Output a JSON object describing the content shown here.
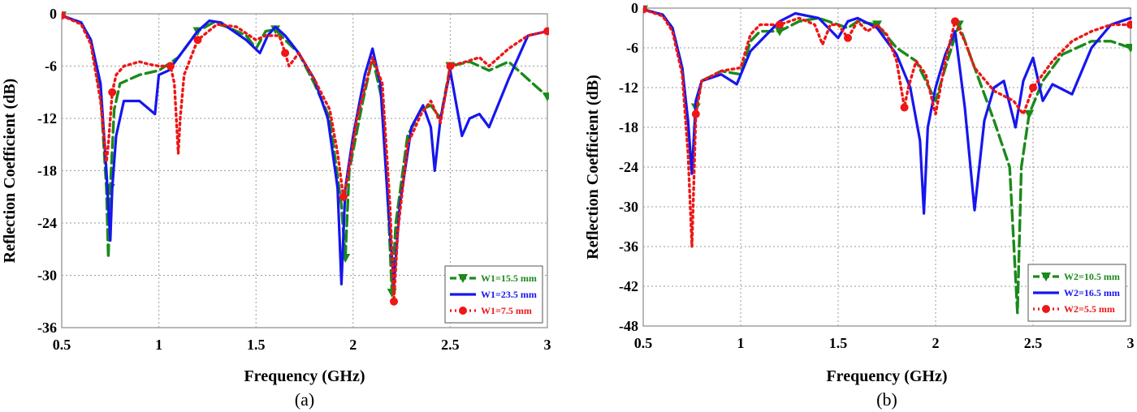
{
  "chart_data": [
    {
      "type": "line",
      "panel_label": "(a)",
      "xlabel": "Frequency (GHz)",
      "ylabel": "Reflection Coefficient (dB)",
      "xlim": [
        0.5,
        3
      ],
      "ylim": [
        -36,
        0
      ],
      "xticks": [
        0.5,
        1,
        1.5,
        2,
        2.5,
        3
      ],
      "xtick_labels": [
        "0.5",
        "1",
        "1.5",
        "2",
        "2.5",
        "3"
      ],
      "yticks": [
        0,
        -6,
        -12,
        -18,
        -24,
        -30,
        -36
      ],
      "ytick_labels": [
        "0",
        "-6",
        "-12",
        "-18",
        "-24",
        "-30",
        "-36"
      ],
      "grid": true,
      "legend_position": "bottom-right",
      "series": [
        {
          "name": "W1=15.5 mm",
          "color": "#1a8a1a",
          "style": "dashed",
          "marker": "triangle-down",
          "x": [
            0.5,
            0.6,
            0.65,
            0.7,
            0.73,
            0.74,
            0.75,
            0.77,
            0.8,
            0.9,
            1.0,
            1.1,
            1.2,
            1.28,
            1.35,
            1.45,
            1.5,
            1.55,
            1.6,
            1.65,
            1.72,
            1.8,
            1.88,
            1.94,
            1.96,
            1.98,
            2.05,
            2.1,
            2.15,
            2.18,
            2.2,
            2.22,
            2.28,
            2.35,
            2.4,
            2.45,
            2.5,
            2.6,
            2.7,
            2.8,
            2.9,
            3.0
          ],
          "y": [
            -0.2,
            -1.0,
            -3.0,
            -9.0,
            -20.0,
            -28.0,
            -20.0,
            -11.0,
            -8.0,
            -7.0,
            -6.5,
            -5.0,
            -2.0,
            -1.0,
            -1.5,
            -2.5,
            -4.0,
            -2.0,
            -1.8,
            -3.0,
            -4.5,
            -8.0,
            -12.0,
            -22.0,
            -28.0,
            -18.0,
            -10.0,
            -5.0,
            -10.0,
            -22.0,
            -32.0,
            -24.0,
            -14.0,
            -11.0,
            -10.5,
            -12.0,
            -6.0,
            -5.5,
            -6.5,
            -5.5,
            -7.5,
            -9.5
          ]
        },
        {
          "name": "W1=23.5 mm",
          "color": "#1616ee",
          "style": "solid",
          "marker": "none",
          "x": [
            0.5,
            0.6,
            0.65,
            0.7,
            0.73,
            0.75,
            0.76,
            0.78,
            0.82,
            0.9,
            0.98,
            1.0,
            1.05,
            1.1,
            1.2,
            1.26,
            1.32,
            1.45,
            1.52,
            1.56,
            1.6,
            1.65,
            1.72,
            1.8,
            1.87,
            1.92,
            1.94,
            1.96,
            2.0,
            2.06,
            2.1,
            2.14,
            2.18,
            2.21,
            2.24,
            2.3,
            2.36,
            2.4,
            2.42,
            2.45,
            2.5,
            2.56,
            2.6,
            2.65,
            2.7,
            2.8,
            2.9,
            3.0
          ],
          "y": [
            -0.2,
            -1.0,
            -3.0,
            -8.0,
            -18.0,
            -26.0,
            -20.0,
            -14.0,
            -10.0,
            -10.0,
            -11.5,
            -7.0,
            -6.5,
            -5.0,
            -2.0,
            -0.8,
            -1.0,
            -3.0,
            -4.5,
            -2.5,
            -1.5,
            -2.5,
            -4.5,
            -7.5,
            -12.0,
            -20.0,
            -31.0,
            -20.0,
            -14.0,
            -7.0,
            -4.0,
            -8.0,
            -22.0,
            -31.0,
            -22.0,
            -13.0,
            -10.5,
            -13.0,
            -18.0,
            -12.0,
            -6.5,
            -14.0,
            -12.0,
            -11.5,
            -13.0,
            -7.5,
            -2.5,
            -2.0
          ]
        },
        {
          "name": "W1=7.5 mm",
          "color": "#ee1616",
          "style": "dotted",
          "marker": "circle",
          "x": [
            0.5,
            0.6,
            0.65,
            0.7,
            0.73,
            0.74,
            0.76,
            0.78,
            0.82,
            0.9,
            0.95,
            1.0,
            1.06,
            1.08,
            1.09,
            1.1,
            1.11,
            1.13,
            1.2,
            1.3,
            1.4,
            1.5,
            1.55,
            1.62,
            1.65,
            1.67,
            1.72,
            1.8,
            1.88,
            1.92,
            1.95,
            1.97,
            2.02,
            2.1,
            2.15,
            2.19,
            2.21,
            2.23,
            2.28,
            2.35,
            2.4,
            2.45,
            2.5,
            2.58,
            2.65,
            2.7,
            2.8,
            2.9,
            3.0
          ],
          "y": [
            -0.2,
            -1.2,
            -3.5,
            -10.0,
            -17.0,
            -15.0,
            -9.0,
            -7.0,
            -6.0,
            -5.5,
            -5.8,
            -6.0,
            -6.0,
            -8.0,
            -12.0,
            -16.0,
            -12.0,
            -7.0,
            -3.0,
            -1.2,
            -1.5,
            -3.0,
            -2.5,
            -2.5,
            -4.5,
            -6.0,
            -4.5,
            -7.5,
            -11.0,
            -16.0,
            -21.0,
            -19.0,
            -12.0,
            -5.0,
            -8.0,
            -22.0,
            -33.0,
            -25.0,
            -15.0,
            -11.5,
            -10.0,
            -12.5,
            -6.0,
            -5.5,
            -5.0,
            -6.0,
            -4.0,
            -2.5,
            -2.0
          ]
        }
      ]
    },
    {
      "type": "line",
      "panel_label": "(b)",
      "xlabel": "Frequency (GHz)",
      "ylabel": "Reflection Coefficient (dB)",
      "xlim": [
        0.5,
        3
      ],
      "ylim": [
        -48,
        0
      ],
      "xticks": [
        0.5,
        1,
        1.5,
        2,
        2.5,
        3
      ],
      "xtick_labels": [
        "0.5",
        "1",
        "1.5",
        "2",
        "2.5",
        "3"
      ],
      "yticks": [
        0,
        -6,
        -12,
        -18,
        -24,
        -30,
        -36,
        -42,
        -48
      ],
      "ytick_labels": [
        "0",
        "-6",
        "-12",
        "-18",
        "-24",
        "-30",
        "-36",
        "-42",
        "-48"
      ],
      "grid": true,
      "legend_position": "bottom-right",
      "series": [
        {
          "name": "W2=10.5 mm",
          "color": "#1a8a1a",
          "style": "dashed",
          "marker": "triangle-down",
          "x": [
            0.5,
            0.6,
            0.65,
            0.7,
            0.73,
            0.75,
            0.77,
            0.8,
            0.9,
            1.0,
            1.05,
            1.1,
            1.2,
            1.3,
            1.4,
            1.5,
            1.55,
            1.6,
            1.7,
            1.8,
            1.9,
            1.95,
            2.0,
            2.06,
            2.12,
            2.2,
            2.3,
            2.38,
            2.42,
            2.44,
            2.48,
            2.55,
            2.65,
            2.8,
            2.9,
            3.0
          ],
          "y": [
            -0.2,
            -1.0,
            -3.0,
            -9.0,
            -18.0,
            -25.0,
            -15.0,
            -11.0,
            -9.5,
            -10.0,
            -5.0,
            -3.5,
            -3.5,
            -2.0,
            -1.5,
            -2.5,
            -3.0,
            -2.0,
            -2.5,
            -6.0,
            -8.0,
            -11.0,
            -14.0,
            -8.0,
            -2.5,
            -9.0,
            -17.0,
            -24.0,
            -46.0,
            -24.0,
            -16.0,
            -11.0,
            -7.0,
            -5.0,
            -5.0,
            -6.0
          ]
        },
        {
          "name": "W2=16.5 mm",
          "color": "#1616ee",
          "style": "solid",
          "marker": "none",
          "x": [
            0.5,
            0.6,
            0.65,
            0.7,
            0.73,
            0.75,
            0.77,
            0.8,
            0.9,
            0.98,
            1.05,
            1.2,
            1.28,
            1.4,
            1.5,
            1.55,
            1.6,
            1.7,
            1.8,
            1.87,
            1.92,
            1.94,
            1.96,
            2.0,
            2.05,
            2.1,
            2.15,
            2.2,
            2.25,
            2.3,
            2.35,
            2.41,
            2.45,
            2.5,
            2.55,
            2.6,
            2.7,
            2.8,
            2.9,
            3.0
          ],
          "y": [
            -0.2,
            -1.0,
            -3.0,
            -9.0,
            -17.0,
            -25.0,
            -14.0,
            -11.0,
            -10.0,
            -11.5,
            -6.5,
            -2.0,
            -0.8,
            -1.5,
            -4.5,
            -2.0,
            -1.5,
            -3.0,
            -7.0,
            -12.0,
            -20.0,
            -31.0,
            -18.0,
            -12.0,
            -7.0,
            -3.5,
            -15.0,
            -30.5,
            -17.0,
            -12.0,
            -11.0,
            -18.0,
            -11.0,
            -7.5,
            -14.0,
            -11.5,
            -13.0,
            -6.0,
            -2.5,
            -1.5
          ]
        },
        {
          "name": "W2=5.5 mm",
          "color": "#ee1616",
          "style": "dotted",
          "marker": "circle",
          "x": [
            0.5,
            0.6,
            0.65,
            0.7,
            0.73,
            0.75,
            0.77,
            0.8,
            0.9,
            1.0,
            1.05,
            1.1,
            1.2,
            1.3,
            1.38,
            1.42,
            1.46,
            1.5,
            1.55,
            1.6,
            1.65,
            1.7,
            1.75,
            1.8,
            1.84,
            1.86,
            1.9,
            1.95,
            2.0,
            2.05,
            2.1,
            2.15,
            2.2,
            2.3,
            2.4,
            2.45,
            2.5,
            2.6,
            2.7,
            2.8,
            2.9,
            3.0
          ],
          "y": [
            -0.2,
            -1.2,
            -3.5,
            -10.0,
            -22.0,
            -36.0,
            -16.0,
            -11.0,
            -9.5,
            -9.0,
            -4.0,
            -2.5,
            -2.5,
            -1.5,
            -2.5,
            -5.5,
            -2.5,
            -2.5,
            -4.5,
            -2.0,
            -3.5,
            -2.5,
            -4.0,
            -8.0,
            -15.0,
            -12.0,
            -8.0,
            -10.0,
            -16.0,
            -8.0,
            -2.0,
            -5.0,
            -9.0,
            -12.5,
            -14.0,
            -16.0,
            -12.0,
            -8.0,
            -5.0,
            -3.5,
            -2.5,
            -2.5
          ]
        }
      ]
    }
  ]
}
